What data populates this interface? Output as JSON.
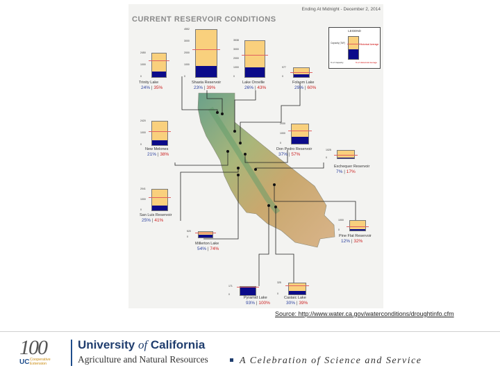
{
  "poster": {
    "title": "CURRENT RESERVOIR CONDITIONS",
    "date": "Ending At Midnight - December 2, 2014",
    "legend": {
      "title": "LEGEND",
      "capacity_label": "Capacity (TAF)",
      "historical_label": "Historical Average",
      "current_label": "% of Capacity",
      "pct_avg_label": "% of Historical Average"
    },
    "colors": {
      "capacity": "#f9d07d",
      "storage": "#0b0b8a",
      "average_line": "#e06060"
    },
    "reservoirs": [
      {
        "name": "Trinity Lake",
        "pct_capacity": "24%",
        "pct_average": "35%",
        "fill": 0.24,
        "avg_level": 0.68,
        "ticks": [
          "2450",
          "1000",
          "0"
        ]
      },
      {
        "name": "Shasta Reservoir",
        "pct_capacity": "23%",
        "pct_average": "39%",
        "fill": 0.23,
        "avg_level": 0.58,
        "ticks": [
          "4552",
          "3000",
          "2000",
          "1000",
          "0"
        ]
      },
      {
        "name": "Lake Oroville",
        "pct_capacity": "26%",
        "pct_average": "43%",
        "fill": 0.26,
        "avg_level": 0.6,
        "ticks": [
          "3538",
          "3000",
          "2000",
          "1000",
          "0"
        ]
      },
      {
        "name": "Folsom Lake",
        "pct_capacity": "29%",
        "pct_average": "60%",
        "fill": 0.29,
        "avg_level": 0.48,
        "ticks": [
          "977",
          "0"
        ]
      },
      {
        "name": "New Melones",
        "pct_capacity": "21%",
        "pct_average": "38%",
        "fill": 0.21,
        "avg_level": 0.55,
        "ticks": [
          "2420",
          "1000",
          "0"
        ]
      },
      {
        "name": "Don Pedro Reservoir",
        "pct_capacity": "37%",
        "pct_average": "57%",
        "fill": 0.37,
        "avg_level": 0.65,
        "ticks": [
          "2030",
          "1000",
          "0"
        ]
      },
      {
        "name": "Exchequer Reservoir",
        "pct_capacity": "7%",
        "pct_average": "17%",
        "fill": 0.07,
        "avg_level": 0.4,
        "ticks": [
          "1025",
          "0"
        ]
      },
      {
        "name": "San Luis Reservoir",
        "pct_capacity": "25%",
        "pct_average": "41%",
        "fill": 0.25,
        "avg_level": 0.6,
        "ticks": [
          "2041",
          "1000",
          "0"
        ]
      },
      {
        "name": "Millerton Lake",
        "pct_capacity": "54%",
        "pct_average": "74%",
        "fill": 0.54,
        "avg_level": 0.73,
        "ticks": [
          "520",
          "0"
        ]
      },
      {
        "name": "Pine Flat Reservoir",
        "pct_capacity": "12%",
        "pct_average": "32%",
        "fill": 0.12,
        "avg_level": 0.38,
        "ticks": [
          "1000",
          "0"
        ]
      },
      {
        "name": "Pyramid Lake",
        "pct_capacity": "93%",
        "pct_average": "100%",
        "fill": 0.93,
        "avg_level": 0.93,
        "ticks": [
          "171",
          "0"
        ]
      },
      {
        "name": "Castaic Lake",
        "pct_capacity": "30%",
        "pct_average": "39%",
        "fill": 0.3,
        "avg_level": 0.77,
        "ticks": [
          "325",
          "0"
        ]
      }
    ]
  },
  "source": "Source: http://www.water.ca.gov/waterconditions/droughtinfo.cfm",
  "footer": {
    "centennial_mark": "100",
    "ucce_line1": "UC",
    "ucce_line2a": "Cooperative",
    "ucce_line2b": "Extension",
    "uc_name_pre": "University ",
    "uc_name_of": "of",
    "uc_name_post": " California",
    "uc_division": "Agriculture and Natural Resources",
    "tagline": "A Celebration of Science and Service"
  }
}
